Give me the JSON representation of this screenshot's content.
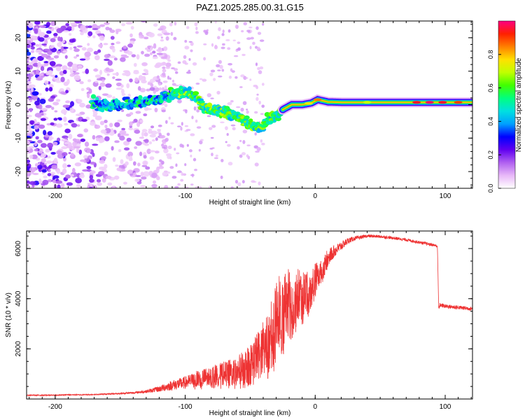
{
  "title": "PAZ1.2025.285.00.31.G15",
  "spectrogram": {
    "type": "heatmap",
    "xlabel": "Height of straight line (km)",
    "ylabel": "Frequency (Hz)",
    "xlim": [
      -222,
      121
    ],
    "ylim": [
      -25,
      25
    ],
    "xticks": [
      -200,
      -100,
      0,
      100
    ],
    "yticks": [
      -20,
      -10,
      0,
      10,
      20
    ],
    "ridge": [
      {
        "x": -170,
        "y": 0.4
      },
      {
        "x": -160,
        "y": -0.5
      },
      {
        "x": -150,
        "y": 0.2
      },
      {
        "x": -140,
        "y": 0.6
      },
      {
        "x": -130,
        "y": 0.5
      },
      {
        "x": -120,
        "y": 1.5
      },
      {
        "x": -110,
        "y": 3.0
      },
      {
        "x": -100,
        "y": 3.5
      },
      {
        "x": -92,
        "y": 2.5
      },
      {
        "x": -85,
        "y": -1.0
      },
      {
        "x": -80,
        "y": -2.0
      },
      {
        "x": -72,
        "y": -1.5
      },
      {
        "x": -65,
        "y": -3.0
      },
      {
        "x": -58,
        "y": -4.0
      },
      {
        "x": -50,
        "y": -6.0
      },
      {
        "x": -42,
        "y": -7.0
      },
      {
        "x": -37,
        "y": -5.0
      },
      {
        "x": -33,
        "y": -4.0
      },
      {
        "x": -25,
        "y": -1.5
      },
      {
        "x": -18,
        "y": 0.0
      },
      {
        "x": -10,
        "y": 0.0
      },
      {
        "x": -3,
        "y": 0.5
      },
      {
        "x": 2,
        "y": 1.5
      },
      {
        "x": 10,
        "y": 0.8
      },
      {
        "x": 20,
        "y": 0.7
      },
      {
        "x": 40,
        "y": 0.7
      },
      {
        "x": 60,
        "y": 0.7
      },
      {
        "x": 80,
        "y": 0.7
      },
      {
        "x": 100,
        "y": 0.7
      },
      {
        "x": 120,
        "y": 0.7
      }
    ]
  },
  "colorbar": {
    "label": "Normalized spectral amplitude",
    "range": [
      0,
      1
    ],
    "ticks": [
      "0.0",
      "0.2",
      "0.4",
      "0.6",
      "0.8"
    ],
    "colors": [
      "#ffffff",
      "#e8b8f8",
      "#b060f0",
      "#6000f0",
      "#0000ff",
      "#00a0ff",
      "#00e0e0",
      "#00ff80",
      "#40ff00",
      "#c0ff00",
      "#ffe000",
      "#ff8000",
      "#ff2000",
      "#ff0080"
    ]
  },
  "chart_data": {
    "type": "line",
    "title": "PAZ1.2025.285.00.31.G15",
    "xlabel": "Height of straight line (km)",
    "ylabel": "SNR (10 * v/v)",
    "xlim": [
      -222,
      121
    ],
    "ylim": [
      0,
      6700
    ],
    "xticks": [
      -200,
      -100,
      0,
      100
    ],
    "yticks": [
      2000,
      4000,
      6000
    ],
    "line_color": "#ee3333",
    "series": [
      {
        "name": "SNR",
        "x": [
          -222,
          -210,
          -200,
          -190,
          -180,
          -170,
          -160,
          -150,
          -140,
          -130,
          -120,
          -110,
          -100,
          -90,
          -80,
          -70,
          -60,
          -50,
          -45,
          -40,
          -35,
          -30,
          -27,
          -25,
          -22,
          -20,
          -18,
          -15,
          -12,
          -10,
          -7,
          -5,
          -2,
          0,
          2,
          5,
          8,
          10,
          15,
          20,
          25,
          30,
          35,
          40,
          50,
          60,
          70,
          80,
          90,
          94,
          95,
          96,
          100,
          110,
          121
        ],
        "y": [
          150,
          150,
          150,
          170,
          170,
          180,
          200,
          220,
          250,
          300,
          400,
          550,
          650,
          800,
          900,
          1000,
          1100,
          1400,
          1700,
          2000,
          2400,
          3000,
          3600,
          3200,
          4000,
          3800,
          3600,
          4000,
          4200,
          4100,
          4400,
          4000,
          4600,
          4800,
          4900,
          5100,
          5400,
          5700,
          5900,
          6100,
          6300,
          6400,
          6450,
          6500,
          6480,
          6420,
          6350,
          6250,
          6150,
          6100,
          3600,
          3750,
          3700,
          3650,
          3600
        ],
        "noise_amplitude": [
          20,
          20,
          20,
          20,
          20,
          20,
          25,
          30,
          40,
          60,
          120,
          200,
          250,
          350,
          420,
          500,
          600,
          800,
          950,
          1100,
          1300,
          1600,
          1700,
          1600,
          1500,
          1400,
          1300,
          1200,
          1100,
          1000,
          900,
          800,
          700,
          650,
          550,
          450,
          400,
          350,
          250,
          180,
          120,
          90,
          70,
          60,
          60,
          60,
          60,
          60,
          60,
          60,
          80,
          80,
          80,
          80,
          80
        ]
      }
    ]
  }
}
